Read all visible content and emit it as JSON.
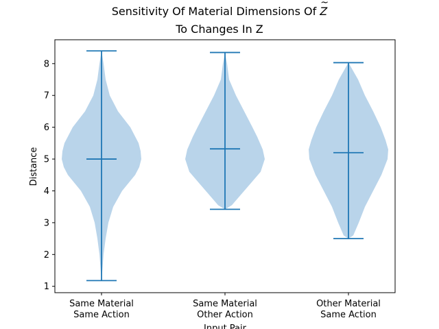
{
  "chart_data": {
    "type": "violin",
    "title_line1": "Sensitivity Of Material Dimensions Of ",
    "title_symbol": "Z",
    "title_line2": "To Changes In Z",
    "xlabel": "Input Pair",
    "ylabel": "Distance",
    "ylim": [
      0.8,
      8.75
    ],
    "yticks": [
      1,
      2,
      3,
      4,
      5,
      6,
      7,
      8
    ],
    "categories": [
      [
        "Same Material",
        "Same Action"
      ],
      [
        "Same Material",
        "Other Action"
      ],
      [
        "Other Material",
        "Same Action"
      ]
    ],
    "series": [
      {
        "min": 1.18,
        "max": 8.4,
        "mean": 5.0,
        "profile": [
          [
            1.18,
            0.0
          ],
          [
            1.5,
            0.012
          ],
          [
            2.0,
            0.03
          ],
          [
            2.5,
            0.06
          ],
          [
            3.0,
            0.1
          ],
          [
            3.5,
            0.17
          ],
          [
            4.0,
            0.3
          ],
          [
            4.5,
            0.49
          ],
          [
            4.75,
            0.55
          ],
          [
            5.0,
            0.58
          ],
          [
            5.25,
            0.57
          ],
          [
            5.5,
            0.54
          ],
          [
            6.0,
            0.42
          ],
          [
            6.5,
            0.24
          ],
          [
            7.0,
            0.12
          ],
          [
            7.5,
            0.06
          ],
          [
            8.0,
            0.03
          ],
          [
            8.4,
            0.0
          ]
        ]
      },
      {
        "min": 3.42,
        "max": 8.35,
        "mean": 5.32,
        "profile": [
          [
            3.42,
            0.0
          ],
          [
            3.55,
            0.1
          ],
          [
            3.8,
            0.2
          ],
          [
            4.2,
            0.36
          ],
          [
            4.6,
            0.52
          ],
          [
            5.0,
            0.58
          ],
          [
            5.3,
            0.55
          ],
          [
            5.7,
            0.47
          ],
          [
            6.0,
            0.4
          ],
          [
            6.5,
            0.28
          ],
          [
            7.0,
            0.16
          ],
          [
            7.5,
            0.06
          ],
          [
            8.0,
            0.03
          ],
          [
            8.35,
            0.0
          ]
        ]
      },
      {
        "min": 2.5,
        "max": 8.03,
        "mean": 5.2,
        "profile": [
          [
            2.5,
            0.0
          ],
          [
            2.6,
            0.07
          ],
          [
            3.0,
            0.15
          ],
          [
            3.5,
            0.24
          ],
          [
            4.0,
            0.36
          ],
          [
            4.5,
            0.48
          ],
          [
            5.0,
            0.57
          ],
          [
            5.3,
            0.58
          ],
          [
            5.6,
            0.54
          ],
          [
            6.0,
            0.47
          ],
          [
            6.5,
            0.36
          ],
          [
            7.0,
            0.24
          ],
          [
            7.5,
            0.14
          ],
          [
            8.03,
            0.0
          ]
        ]
      }
    ],
    "colors": {
      "body": "#b9d4ea",
      "line": "#1f77b4",
      "axis": "#000000"
    }
  }
}
